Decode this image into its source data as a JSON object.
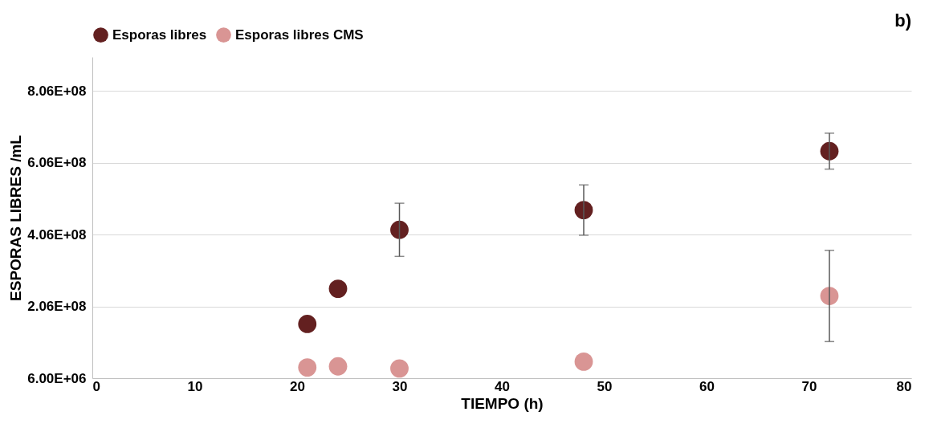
{
  "chart_data": {
    "type": "scatter",
    "xlabel": "TIEMPO (h)",
    "ylabel": "ESPORAS LIBRES /mL",
    "annotations": [
      "b)"
    ],
    "x": [
      21,
      24,
      30,
      48,
      72
    ],
    "series": [
      {
        "name": "Esporas libres",
        "color": "#632020",
        "values": [
          157000000,
          255000000,
          419000000,
          474000000,
          638000000
        ],
        "errors": [
          null,
          null,
          74000000,
          70000000,
          50000000
        ]
      },
      {
        "name": "Esporas libres CMS",
        "color": "#d99594",
        "values": [
          36000000,
          39000000,
          33000000,
          52000000,
          235000000
        ],
        "errors": [
          null,
          null,
          null,
          null,
          127000000
        ]
      }
    ],
    "xlim": [
      0,
      80
    ],
    "xticks": [
      0,
      10,
      20,
      30,
      40,
      50,
      60,
      70,
      80
    ],
    "ylim": [
      6000000,
      900000000
    ],
    "yticks": [
      {
        "value": 6000000,
        "label": "6.00E+06"
      },
      {
        "value": 206000000,
        "label": "2.06E+08"
      },
      {
        "value": 406000000,
        "label": "4.06E+08"
      },
      {
        "value": 606000000,
        "label": "6.06E+08"
      },
      {
        "value": 806000000,
        "label": "8.06E+08"
      }
    ],
    "grid": "y",
    "legend": "top",
    "marker": "circle"
  }
}
